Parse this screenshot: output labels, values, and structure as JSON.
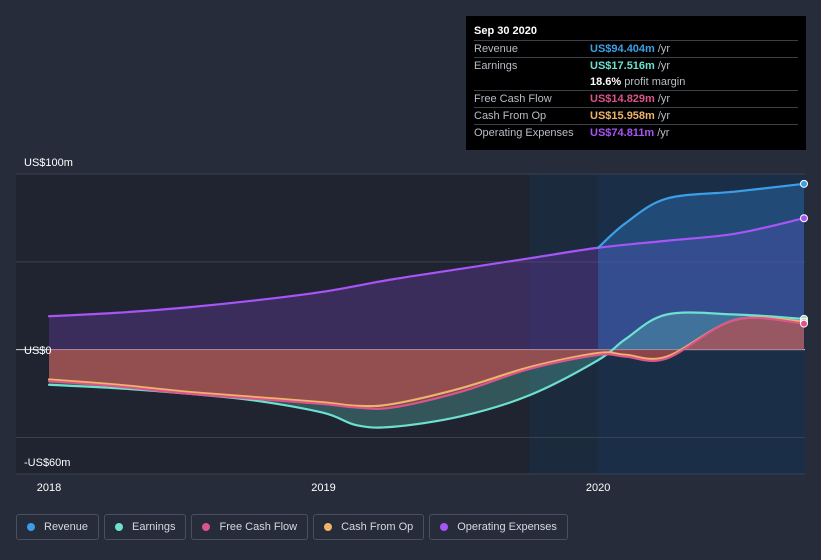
{
  "tooltip": {
    "date": "Sep 30 2020",
    "rows": [
      {
        "label": "Revenue",
        "value": "US$94.404m",
        "unit": "/yr",
        "color": "#3b9fe8"
      },
      {
        "label": "Earnings",
        "value": "US$17.516m",
        "unit": "/yr",
        "color": "#6ee0d0"
      },
      {
        "label": "",
        "value": "18.6%",
        "unit": "profit margin",
        "color": "#ffffff"
      },
      {
        "label": "Free Cash Flow",
        "value": "US$14.829m",
        "unit": "/yr",
        "color": "#d9558a"
      },
      {
        "label": "Cash From Op",
        "value": "US$15.958m",
        "unit": "/yr",
        "color": "#f0b36b"
      },
      {
        "label": "Operating Expenses",
        "value": "US$74.811m",
        "unit": "/yr",
        "color": "#a855f7"
      }
    ]
  },
  "legend": [
    {
      "label": "Revenue",
      "color": "#3b9fe8"
    },
    {
      "label": "Earnings",
      "color": "#6ee0d0"
    },
    {
      "label": "Free Cash Flow",
      "color": "#d9558a"
    },
    {
      "label": "Cash From Op",
      "color": "#f0b36b"
    },
    {
      "label": "Operating Expenses",
      "color": "#a855f7"
    }
  ],
  "chart_data": {
    "type": "area",
    "x_ticks": [
      "2018",
      "2019",
      "2020"
    ],
    "y_tick_labels": [
      "US$100m",
      "US$0",
      "-US$60m"
    ],
    "ylim": [
      -60,
      100
    ],
    "xlim": [
      2018.0,
      2020.75
    ],
    "series": [
      {
        "name": "Revenue",
        "color": "#3b9fe8",
        "x": [
          2020.0,
          2020.1,
          2020.25,
          2020.5,
          2020.75
        ],
        "y": [
          58,
          72,
          86,
          90,
          94.404
        ]
      },
      {
        "name": "Earnings",
        "color": "#6ee0d0",
        "x": [
          2018.0,
          2018.25,
          2018.5,
          2018.75,
          2019.0,
          2019.12,
          2019.25,
          2019.5,
          2019.75,
          2020.0,
          2020.1,
          2020.25,
          2020.5,
          2020.75
        ],
        "y": [
          -20,
          -22,
          -25,
          -29,
          -36,
          -43,
          -44,
          -38,
          -26,
          -6,
          6,
          20,
          20,
          17.516
        ]
      },
      {
        "name": "Free Cash Flow",
        "color": "#d9558a",
        "x": [
          2018.0,
          2018.25,
          2018.5,
          2018.75,
          2019.0,
          2019.12,
          2019.25,
          2019.5,
          2019.75,
          2020.0,
          2020.1,
          2020.25,
          2020.5,
          2020.75
        ],
        "y": [
          -18,
          -21,
          -25,
          -28,
          -31,
          -33,
          -33,
          -24,
          -11,
          -3,
          -4,
          -5,
          17,
          14.829
        ]
      },
      {
        "name": "Cash From Op",
        "color": "#f0b36b",
        "x": [
          2018.0,
          2018.25,
          2018.5,
          2018.75,
          2019.0,
          2019.12,
          2019.25,
          2019.5,
          2019.75,
          2020.0,
          2020.1,
          2020.25,
          2020.5,
          2020.75
        ],
        "y": [
          -17,
          -20,
          -24,
          -27,
          -30,
          -32,
          -31,
          -22,
          -10,
          -2,
          -3,
          -4,
          17,
          15.958
        ]
      },
      {
        "name": "Operating Expenses",
        "color": "#a855f7",
        "x": [
          2018.0,
          2018.25,
          2018.5,
          2018.75,
          2019.0,
          2019.25,
          2019.5,
          2019.75,
          2020.0,
          2020.25,
          2020.5,
          2020.75
        ],
        "y": [
          19,
          21,
          24,
          28,
          33,
          40,
          46,
          52,
          58,
          62,
          66,
          74.811
        ]
      }
    ],
    "highlight_start": 2019.75,
    "forecast_start": 2020.0
  }
}
